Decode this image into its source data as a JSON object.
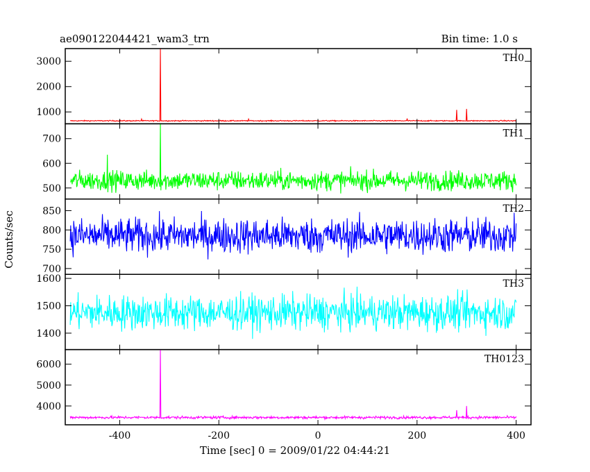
{
  "header": {
    "left_title": "ae090122044421_wam3_trn",
    "right_title": "Bin time: 1.0 s"
  },
  "chart_data": {
    "type": "line",
    "title": "ae090122044421_wam3_trn",
    "subtitle": "Bin time: 1.0 s",
    "xlabel": "Time [sec] 0 = 2009/01/22 04:44:21",
    "ylabel": "Counts/sec",
    "xlim": [
      -510,
      430
    ],
    "xticks": [
      -400,
      -200,
      0,
      200,
      400
    ],
    "x_start": -500,
    "x_end": 400,
    "bin_time_s": 1.0,
    "grid": false,
    "panels": [
      {
        "name": "TH0",
        "color": "#ff0000",
        "ylim": [
          530,
          3500
        ],
        "yticks": [
          1000,
          2000,
          3000
        ],
        "mean": 650,
        "noise": 14,
        "spikes": [
          {
            "x": -318,
            "y": 3500
          },
          {
            "x": -356,
            "y": 720
          },
          {
            "x": -140,
            "y": 720
          },
          {
            "x": 180,
            "y": 740
          },
          {
            "x": 280,
            "y": 1080
          },
          {
            "x": 300,
            "y": 1120
          }
        ]
      },
      {
        "name": "TH1",
        "color": "#00ff00",
        "ylim": [
          455,
          760
        ],
        "yticks": [
          500,
          600,
          700
        ],
        "mean": 530,
        "noise": 28,
        "spikes": [
          {
            "x": -318,
            "y": 760
          },
          {
            "x": -425,
            "y": 635
          }
        ]
      },
      {
        "name": "TH2",
        "color": "#0000ff",
        "ylim": [
          685,
          880
        ],
        "yticks": [
          700,
          750,
          800,
          850
        ],
        "mean": 785,
        "noise": 32,
        "spikes": []
      },
      {
        "name": "TH3",
        "color": "#00ffff",
        "ylim": [
          1340,
          1615
        ],
        "yticks": [
          1400,
          1500,
          1600
        ],
        "mean": 1475,
        "noise": 45,
        "spikes": []
      },
      {
        "name": "TH0123",
        "color": "#ff00ff",
        "ylim": [
          3100,
          6700
        ],
        "yticks": [
          4000,
          5000,
          6000
        ],
        "mean": 3450,
        "noise": 45,
        "spikes": [
          {
            "x": -318,
            "y": 6700
          },
          {
            "x": 280,
            "y": 3800
          },
          {
            "x": 300,
            "y": 4000
          }
        ]
      }
    ]
  }
}
